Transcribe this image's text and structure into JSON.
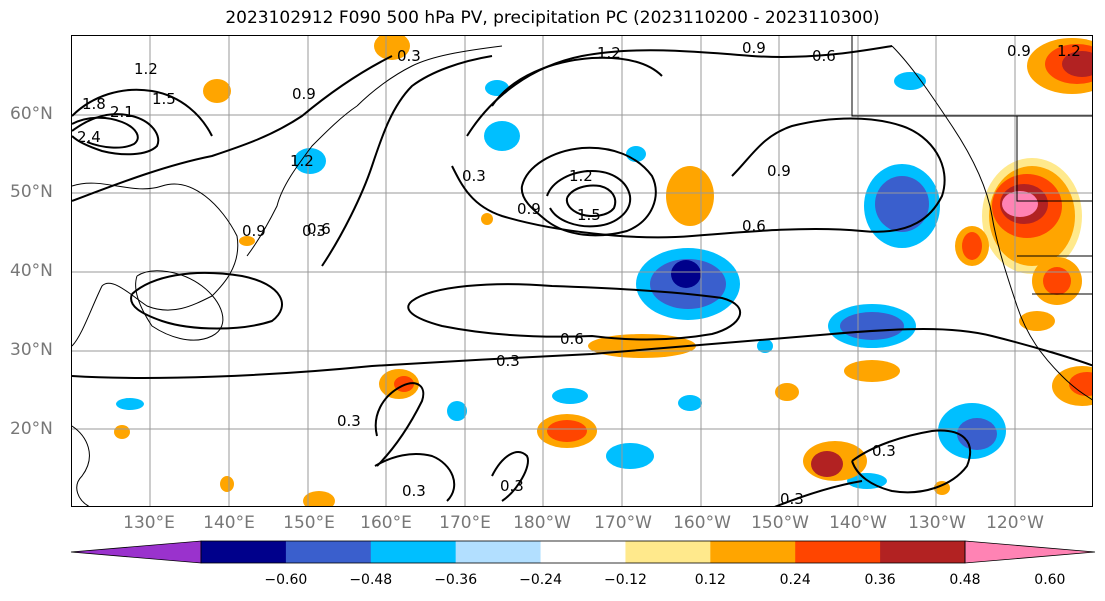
{
  "title": "2023102912 F090 500 hPa PV, precipitation PC (2023110200 - 2023110300)",
  "lat_labels": [
    "60°N",
    "50°N",
    "40°N",
    "30°N",
    "20°N"
  ],
  "lon_labels": [
    "130°E",
    "140°E",
    "150°E",
    "160°E",
    "170°E",
    "180°W",
    "170°W",
    "160°W",
    "150°W",
    "140°W",
    "130°W",
    "120°W"
  ],
  "colorbar": {
    "colors": [
      "#9a32cd",
      "#00008b",
      "#3a5fcd",
      "#00bfff",
      "#b2dfff",
      "#ffffff",
      "#ffe98c",
      "#ffa500",
      "#ff4500",
      "#b22222",
      "#ff83b4"
    ],
    "tick_labels": [
      "−0.60",
      "−0.48",
      "−0.36",
      "−0.24",
      "−0.12",
      "0.12",
      "0.24",
      "0.36",
      "0.48",
      "0.60"
    ]
  },
  "contour_labels": [
    "1.2",
    "0.3",
    "0.9",
    "1.2",
    "0.9",
    "0.6",
    "0.9",
    "1.2",
    "1.5",
    "1.8",
    "2.1",
    "2.4",
    "0.9",
    "1.2",
    "0.6",
    "0.3",
    "1.2",
    "0.9",
    "1.5",
    "0.9",
    "0.6",
    "0.6",
    "0.3",
    "0.3",
    "0.3",
    "0.3",
    "0.3",
    "0.3",
    "0.3"
  ]
}
